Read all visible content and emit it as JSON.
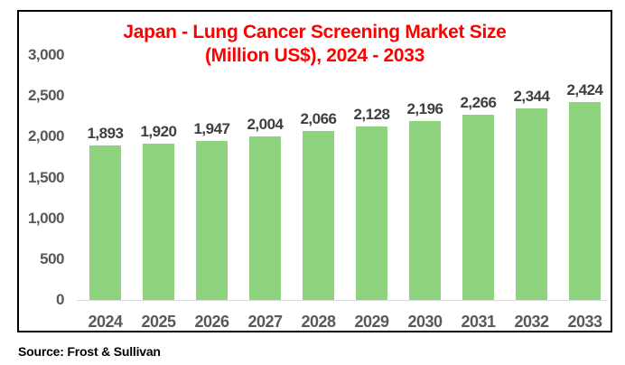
{
  "chart_data": {
    "type": "bar",
    "title": "Japan - Lung Cancer Screening Market Size (Million US$), 2024 - 2033",
    "title_line1": "Japan - Lung Cancer Screening Market Size",
    "title_line2": "(Million US$), 2024 - 2033",
    "categories": [
      "2024",
      "2025",
      "2026",
      "2027",
      "2028",
      "2029",
      "2030",
      "2031",
      "2032",
      "2033"
    ],
    "values": [
      1893,
      1920,
      1947,
      2004,
      2066,
      2128,
      2196,
      2266,
      2344,
      2424
    ],
    "value_labels": [
      "1,893",
      "1,920",
      "1,947",
      "2,004",
      "2,066",
      "2,128",
      "2,196",
      "2,266",
      "2,344",
      "2,424"
    ],
    "xlabel": "",
    "ylabel": "",
    "ylim": [
      0,
      3000
    ],
    "ytick_interval": 500,
    "ytick_labels": [
      "0",
      "500",
      "1,000",
      "1,500",
      "2,000",
      "2,500",
      "3,000"
    ],
    "grid": false,
    "legend": "none",
    "colors": {
      "bar": "#90D37F",
      "title": "#FF0000",
      "axis_text": "#595959",
      "value_label_text": "#3F3F3F",
      "axis_line": "#D9D9D9",
      "frame_border": "#000000",
      "background": "#FFFFFF"
    }
  },
  "source_note": "Source: Frost & Sullivan"
}
